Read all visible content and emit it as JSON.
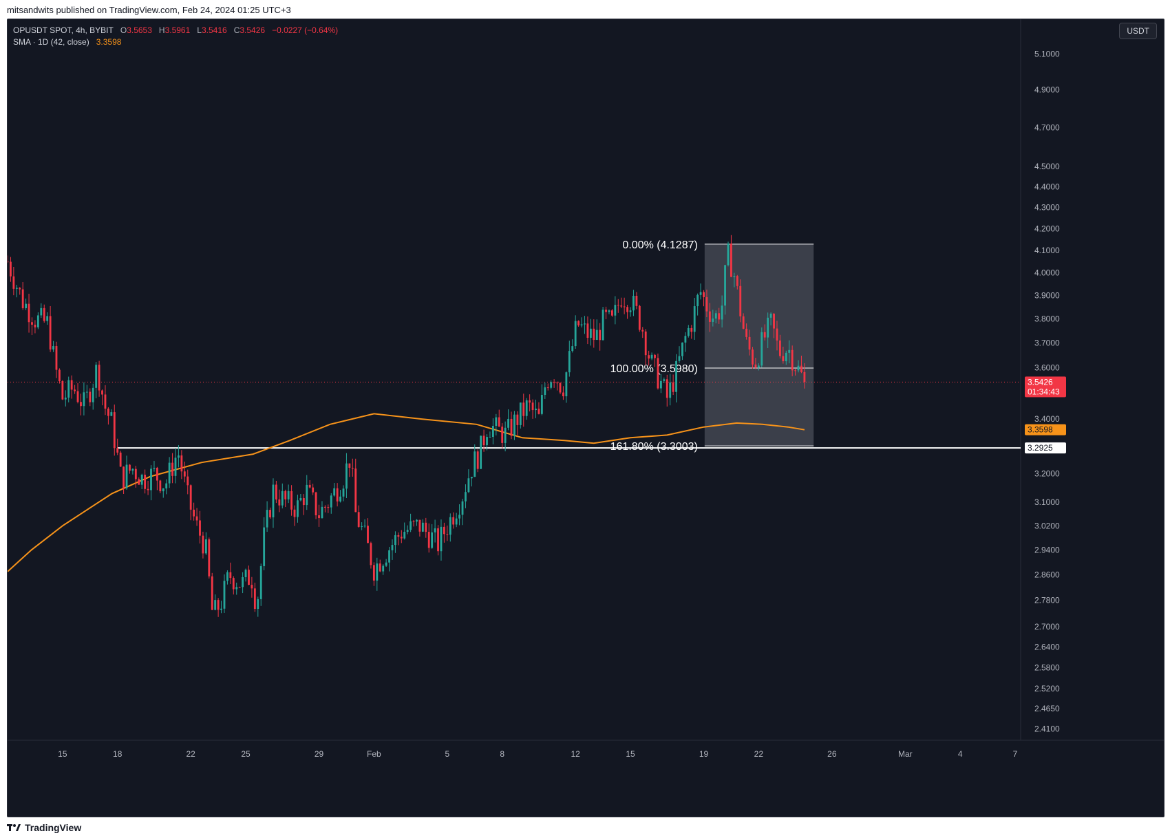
{
  "header": {
    "published": "mitsandwits published on TradingView.com, Feb 24, 2024 01:25 UTC+3"
  },
  "legend": {
    "symbol": "OPUSDT SPOT, 4h, BYBIT",
    "o_label": "O",
    "o": "3.5653",
    "h_label": "H",
    "h": "3.5961",
    "l_label": "L",
    "l": "3.5416",
    "c_label": "C",
    "c": "3.5426",
    "change": "−0.0227 (−0.64%)",
    "sma_label": "SMA · 1D (42, close)",
    "sma_value": "3.3598"
  },
  "currency": "USDT",
  "footer": {
    "brand": "TradingView",
    "logo_icon": "tradingview-logo-icon"
  },
  "colors": {
    "background": "#131722",
    "up": "#26a69a",
    "down": "#f23645",
    "sma": "#f7931a",
    "text": "#b2b5be",
    "fib_box": "#5d606b"
  },
  "chart_data": {
    "type": "candlestick",
    "scale": "log",
    "ylim": [
      2.38,
      5.3
    ],
    "xlim_days": [
      12.0,
      67.3
    ],
    "y_ticks": [
      "5.1000",
      "4.9000",
      "4.7000",
      "4.5000",
      "4.4000",
      "4.3000",
      "4.2000",
      "4.1000",
      "4.0000",
      "3.9000",
      "3.8000",
      "3.7000",
      "3.6000",
      "3.4000",
      "3.2000",
      "3.1000",
      "3.0200",
      "2.9400",
      "2.8600",
      "2.7800",
      "2.7000",
      "2.6400",
      "2.5800",
      "2.5200",
      "2.4650",
      "2.4100"
    ],
    "x_ticks": [
      {
        "label": "15",
        "day": 15
      },
      {
        "label": "18",
        "day": 18
      },
      {
        "label": "22",
        "day": 22
      },
      {
        "label": "25",
        "day": 25
      },
      {
        "label": "29",
        "day": 29
      },
      {
        "label": "Feb",
        "day": 32
      },
      {
        "label": "5",
        "day": 36
      },
      {
        "label": "8",
        "day": 39
      },
      {
        "label": "12",
        "day": 43
      },
      {
        "label": "15",
        "day": 46
      },
      {
        "label": "19",
        "day": 50
      },
      {
        "label": "22",
        "day": 53
      },
      {
        "label": "26",
        "day": 57
      },
      {
        "label": "Mar",
        "day": 61
      },
      {
        "label": "4",
        "day": 64
      },
      {
        "label": "7",
        "day": 67
      }
    ],
    "price_path": [
      {
        "day": 12.0,
        "price": 4.05
      },
      {
        "day": 12.8,
        "price": 3.88
      },
      {
        "day": 13.5,
        "price": 3.8
      },
      {
        "day": 14.2,
        "price": 3.78
      },
      {
        "day": 14.6,
        "price": 3.6
      },
      {
        "day": 15.0,
        "price": 3.48
      },
      {
        "day": 15.6,
        "price": 3.52
      },
      {
        "day": 16.2,
        "price": 3.45
      },
      {
        "day": 16.9,
        "price": 3.6
      },
      {
        "day": 17.3,
        "price": 3.45
      },
      {
        "day": 17.7,
        "price": 3.38
      },
      {
        "day": 18.2,
        "price": 3.18
      },
      {
        "day": 18.8,
        "price": 3.22
      },
      {
        "day": 19.4,
        "price": 3.18
      },
      {
        "day": 20.0,
        "price": 3.2
      },
      {
        "day": 20.6,
        "price": 3.16
      },
      {
        "day": 21.3,
        "price": 3.28
      },
      {
        "day": 21.8,
        "price": 3.12
      },
      {
        "day": 22.3,
        "price": 3.02
      },
      {
        "day": 22.8,
        "price": 2.95
      },
      {
        "day": 23.2,
        "price": 2.73
      },
      {
        "day": 23.7,
        "price": 2.78
      },
      {
        "day": 24.1,
        "price": 2.86
      },
      {
        "day": 24.8,
        "price": 2.83
      },
      {
        "day": 25.3,
        "price": 2.86
      },
      {
        "day": 25.6,
        "price": 2.76
      },
      {
        "day": 26.0,
        "price": 2.98
      },
      {
        "day": 26.5,
        "price": 3.14
      },
      {
        "day": 27.2,
        "price": 3.1
      },
      {
        "day": 27.8,
        "price": 3.08
      },
      {
        "day": 28.3,
        "price": 3.14
      },
      {
        "day": 29.0,
        "price": 3.06
      },
      {
        "day": 29.5,
        "price": 3.1
      },
      {
        "day": 30.3,
        "price": 3.18
      },
      {
        "day": 30.7,
        "price": 3.26
      },
      {
        "day": 31.0,
        "price": 3.06
      },
      {
        "day": 31.5,
        "price": 2.98
      },
      {
        "day": 32.0,
        "price": 2.88
      },
      {
        "day": 32.5,
        "price": 2.92
      },
      {
        "day": 33.5,
        "price": 3.0
      },
      {
        "day": 34.5,
        "price": 3.02
      },
      {
        "day": 35.5,
        "price": 2.96
      },
      {
        "day": 36.0,
        "price": 3.02
      },
      {
        "day": 36.8,
        "price": 3.12
      },
      {
        "day": 37.3,
        "price": 3.22
      },
      {
        "day": 37.8,
        "price": 3.28
      },
      {
        "day": 38.2,
        "price": 3.38
      },
      {
        "day": 38.7,
        "price": 3.36
      },
      {
        "day": 39.2,
        "price": 3.34
      },
      {
        "day": 39.8,
        "price": 3.4
      },
      {
        "day": 40.4,
        "price": 3.45
      },
      {
        "day": 41.0,
        "price": 3.4
      },
      {
        "day": 41.4,
        "price": 3.55
      },
      {
        "day": 41.8,
        "price": 3.58
      },
      {
        "day": 42.3,
        "price": 3.52
      },
      {
        "day": 42.7,
        "price": 3.64
      },
      {
        "day": 43.1,
        "price": 3.78
      },
      {
        "day": 43.6,
        "price": 3.74
      },
      {
        "day": 44.1,
        "price": 3.72
      },
      {
        "day": 44.6,
        "price": 3.8
      },
      {
        "day": 45.0,
        "price": 3.78
      },
      {
        "day": 45.5,
        "price": 3.9
      },
      {
        "day": 46.0,
        "price": 3.88
      },
      {
        "day": 46.6,
        "price": 3.78
      },
      {
        "day": 47.1,
        "price": 3.62
      },
      {
        "day": 47.6,
        "price": 3.55
      },
      {
        "day": 48.0,
        "price": 3.48
      },
      {
        "day": 48.5,
        "price": 3.58
      },
      {
        "day": 49.0,
        "price": 3.72
      },
      {
        "day": 49.4,
        "price": 3.8
      },
      {
        "day": 49.8,
        "price": 3.92
      },
      {
        "day": 50.2,
        "price": 3.85
      },
      {
        "day": 50.6,
        "price": 3.8
      },
      {
        "day": 51.0,
        "price": 3.86
      },
      {
        "day": 51.3,
        "price": 4.08
      },
      {
        "day": 51.6,
        "price": 4.02
      },
      {
        "day": 51.9,
        "price": 3.88
      },
      {
        "day": 52.3,
        "price": 3.7
      },
      {
        "day": 52.8,
        "price": 3.62
      },
      {
        "day": 53.3,
        "price": 3.72
      },
      {
        "day": 53.7,
        "price": 3.78
      },
      {
        "day": 54.1,
        "price": 3.66
      },
      {
        "day": 54.6,
        "price": 3.68
      },
      {
        "day": 55.1,
        "price": 3.6
      },
      {
        "day": 55.5,
        "price": 3.5426
      }
    ],
    "sma": [
      {
        "day": 12.0,
        "price": 2.87
      },
      {
        "day": 13.3,
        "price": 2.94
      },
      {
        "day": 15.0,
        "price": 3.02
      },
      {
        "day": 17.7,
        "price": 3.13
      },
      {
        "day": 19.8,
        "price": 3.19
      },
      {
        "day": 22.6,
        "price": 3.24
      },
      {
        "day": 25.4,
        "price": 3.27
      },
      {
        "day": 27.4,
        "price": 3.32
      },
      {
        "day": 29.6,
        "price": 3.38
      },
      {
        "day": 32.0,
        "price": 3.42
      },
      {
        "day": 34.6,
        "price": 3.4
      },
      {
        "day": 37.6,
        "price": 3.38
      },
      {
        "day": 40.1,
        "price": 3.33
      },
      {
        "day": 42.4,
        "price": 3.32
      },
      {
        "day": 44.0,
        "price": 3.31
      },
      {
        "day": 46.0,
        "price": 3.33
      },
      {
        "day": 48.0,
        "price": 3.34
      },
      {
        "day": 50.0,
        "price": 3.37
      },
      {
        "day": 51.8,
        "price": 3.385
      },
      {
        "day": 53.2,
        "price": 3.38
      },
      {
        "day": 54.6,
        "price": 3.37
      },
      {
        "day": 55.5,
        "price": 3.3598
      }
    ],
    "fib": {
      "start_day": 50.05,
      "end_day": 56.0,
      "levels": [
        {
          "label": "0.00% (4.1287)",
          "price": 4.1287
        },
        {
          "label": "100.00% (3.5980)",
          "price": 3.598
        },
        {
          "label": "161.80% (3.3003)",
          "price": 3.3003
        }
      ]
    },
    "support_line": {
      "price": 3.2925,
      "start_day": 18.0,
      "label": "3.2925"
    },
    "last_price": {
      "price": 3.5426,
      "label": "3.5426",
      "countdown": "01:34:43"
    },
    "sma_price_label": {
      "price": 3.3598,
      "label": "3.3598"
    }
  }
}
